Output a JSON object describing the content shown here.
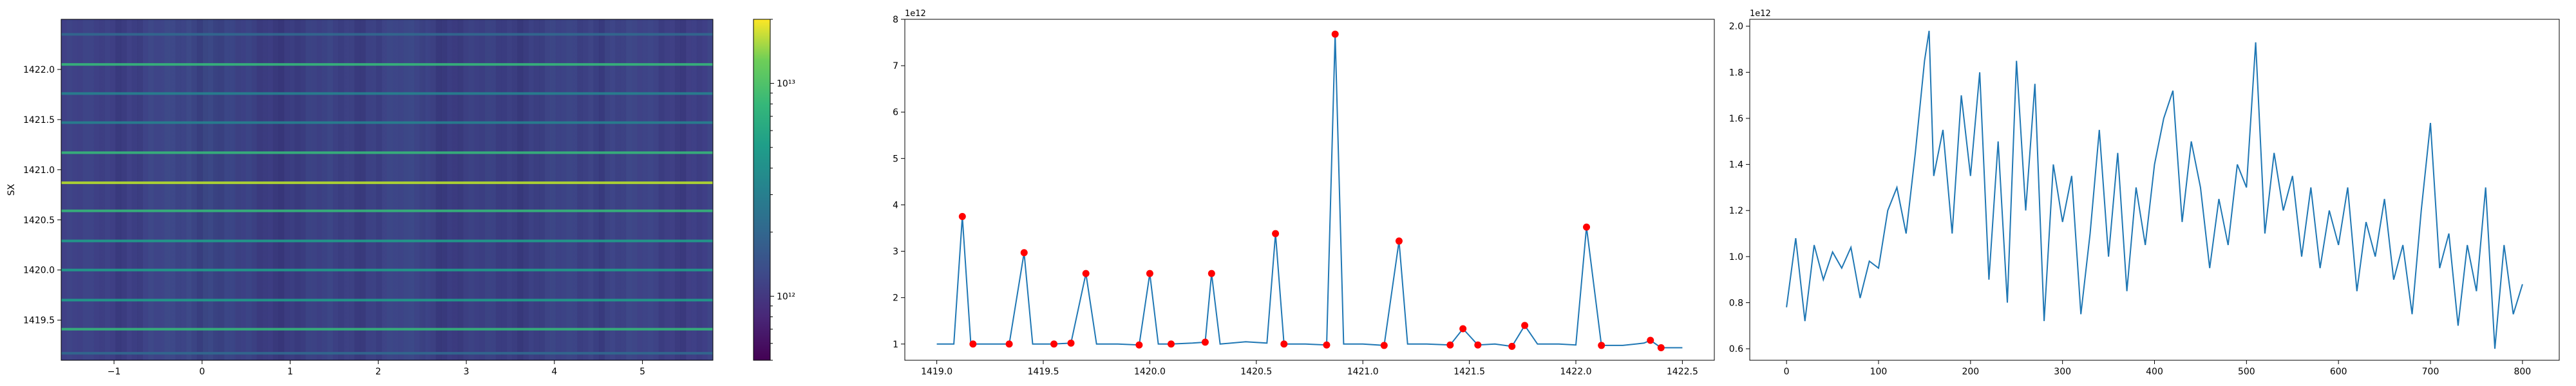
{
  "chart_data": [
    {
      "type": "heatmap",
      "title": "",
      "xlabel": "",
      "ylabel": "SX",
      "xlim": [
        -1.6,
        5.8
      ],
      "ylim": [
        1419.1,
        1422.5
      ],
      "x_ticks": [
        "−1",
        "0",
        "1",
        "2",
        "3",
        "4",
        "5"
      ],
      "x_tick_values": [
        -1,
        0,
        1,
        2,
        3,
        4,
        5
      ],
      "y_ticks": [
        "1419.5",
        "1420.0",
        "1420.5",
        "1421.0",
        "1421.5",
        "1422.0"
      ],
      "y_tick_values": [
        1419.5,
        1420.0,
        1420.5,
        1421.0,
        1421.5,
        1422.0
      ],
      "colormap": "viridis",
      "color_scale": "log",
      "colorbar": {
        "tick_values": [
          1000000000000.0,
          10000000000000.0
        ],
        "tick_labels": [
          "10¹²",
          "10¹³"
        ],
        "range": [
          500000000000.0,
          20000000000000.0
        ]
      },
      "rows": [
        {
          "y": 1419.17,
          "value": 1000000000000.0
        },
        {
          "y": 1419.41,
          "value": 3000000000000.0
        },
        {
          "y": 1419.7,
          "value": 2500000000000.0
        },
        {
          "y": 1420.0,
          "value": 2500000000000.0
        },
        {
          "y": 1420.29,
          "value": 2500000000000.0
        },
        {
          "y": 1420.59,
          "value": 3400000000000.0
        },
        {
          "y": 1420.87,
          "value": 7700000000000.0
        },
        {
          "y": 1421.17,
          "value": 3200000000000.0
        },
        {
          "y": 1421.47,
          "value": 1300000000000.0
        },
        {
          "y": 1421.76,
          "value": 1400000000000.0
        },
        {
          "y": 1422.05,
          "value": 3500000000000.0
        },
        {
          "y": 1422.35,
          "value": 1000000000000.0
        }
      ]
    },
    {
      "type": "line",
      "title": "",
      "xlabel": "",
      "ylabel": "",
      "offset_text": "1e12",
      "xlim": [
        1418.85,
        1422.65
      ],
      "ylim": [
        0.65,
        8.0
      ],
      "x_ticks": [
        "1419.0",
        "1419.5",
        "1420.0",
        "1420.5",
        "1421.0",
        "1421.5",
        "1422.0",
        "1422.5"
      ],
      "x_tick_values": [
        1419.0,
        1419.5,
        1420.0,
        1420.5,
        1421.0,
        1421.5,
        1422.0,
        1422.5
      ],
      "y_ticks": [
        "1",
        "2",
        "3",
        "4",
        "5",
        "6",
        "7",
        "8"
      ],
      "y_tick_values": [
        1,
        2,
        3,
        4,
        5,
        6,
        7,
        8
      ],
      "line_color": "#1f77b4",
      "marker_color": "#ff0000",
      "x": [
        1419.0,
        1419.08,
        1419.12,
        1419.16,
        1419.22,
        1419.34,
        1419.41,
        1419.45,
        1419.55,
        1419.63,
        1419.7,
        1419.75,
        1419.85,
        1419.95,
        1420.0,
        1420.04,
        1420.1,
        1420.2,
        1420.26,
        1420.29,
        1420.33,
        1420.45,
        1420.55,
        1420.59,
        1420.63,
        1420.73,
        1420.83,
        1420.87,
        1420.91,
        1421.0,
        1421.1,
        1421.17,
        1421.21,
        1421.3,
        1421.41,
        1421.47,
        1421.54,
        1421.62,
        1421.7,
        1421.76,
        1421.82,
        1421.92,
        1422.0,
        1422.05,
        1422.12,
        1422.22,
        1422.32,
        1422.35,
        1422.4,
        1422.5
      ],
      "y": [
        1.0,
        1.0,
        3.75,
        1.0,
        1.0,
        1.0,
        2.97,
        1.0,
        1.0,
        1.02,
        2.52,
        1.0,
        1.0,
        0.98,
        2.52,
        1.0,
        1.0,
        1.02,
        1.04,
        2.52,
        1.0,
        1.05,
        1.02,
        3.38,
        1.0,
        1.0,
        0.98,
        7.68,
        1.0,
        1.0,
        0.97,
        3.22,
        1.0,
        1.0,
        0.98,
        1.33,
        0.98,
        1.0,
        0.95,
        1.4,
        1.0,
        1.0,
        0.98,
        3.52,
        0.97,
        0.97,
        1.02,
        1.08,
        0.92,
        0.92
      ],
      "peaks_x": [
        1419.12,
        1419.17,
        1419.34,
        1419.41,
        1419.55,
        1419.63,
        1419.7,
        1419.95,
        1420.0,
        1420.1,
        1420.26,
        1420.29,
        1420.59,
        1420.63,
        1420.83,
        1420.87,
        1421.1,
        1421.17,
        1421.41,
        1421.47,
        1421.54,
        1421.7,
        1421.76,
        1422.05,
        1422.12,
        1422.35,
        1422.4
      ],
      "peaks_y": [
        3.75,
        1.0,
        1.0,
        2.97,
        1.0,
        1.02,
        2.52,
        0.98,
        2.52,
        1.0,
        1.04,
        2.52,
        3.38,
        1.0,
        0.98,
        7.68,
        0.97,
        3.22,
        0.98,
        1.33,
        0.98,
        0.95,
        1.4,
        3.52,
        0.97,
        1.08,
        0.92
      ]
    },
    {
      "type": "line",
      "title": "",
      "xlabel": "",
      "ylabel": "",
      "offset_text": "1e12",
      "xlim": [
        -40,
        840
      ],
      "ylim": [
        0.55,
        2.03
      ],
      "x_ticks": [
        "0",
        "100",
        "200",
        "300",
        "400",
        "500",
        "600",
        "700",
        "800"
      ],
      "x_tick_values": [
        0,
        100,
        200,
        300,
        400,
        500,
        600,
        700,
        800
      ],
      "y_ticks": [
        "0.6",
        "0.8",
        "1.0",
        "1.2",
        "1.4",
        "1.6",
        "1.8",
        "2.0"
      ],
      "y_tick_values": [
        0.6,
        0.8,
        1.0,
        1.2,
        1.4,
        1.6,
        1.8,
        2.0
      ],
      "line_color": "#1f77b4",
      "x": [
        0,
        10,
        20,
        30,
        40,
        50,
        60,
        70,
        80,
        90,
        100,
        110,
        120,
        130,
        140,
        150,
        155,
        160,
        170,
        180,
        190,
        200,
        210,
        220,
        230,
        240,
        250,
        260,
        270,
        280,
        290,
        300,
        310,
        320,
        330,
        340,
        350,
        360,
        370,
        380,
        390,
        400,
        410,
        420,
        430,
        440,
        450,
        460,
        470,
        480,
        490,
        500,
        510,
        520,
        530,
        540,
        550,
        560,
        570,
        580,
        590,
        600,
        610,
        620,
        630,
        640,
        650,
        660,
        670,
        680,
        690,
        700,
        710,
        720,
        730,
        740,
        750,
        760,
        770,
        780,
        790,
        800
      ],
      "y": [
        0.78,
        1.08,
        0.72,
        1.05,
        0.9,
        1.02,
        0.95,
        1.04,
        0.82,
        0.98,
        0.95,
        1.2,
        1.3,
        1.1,
        1.45,
        1.85,
        1.98,
        1.35,
        1.55,
        1.1,
        1.7,
        1.35,
        1.8,
        0.9,
        1.5,
        0.8,
        1.85,
        1.2,
        1.75,
        0.72,
        1.4,
        1.15,
        1.35,
        0.75,
        1.1,
        1.55,
        1.0,
        1.45,
        0.85,
        1.3,
        1.05,
        1.4,
        1.6,
        1.72,
        1.15,
        1.5,
        1.3,
        0.95,
        1.25,
        1.05,
        1.4,
        1.3,
        1.93,
        1.1,
        1.45,
        1.2,
        1.35,
        1.0,
        1.3,
        0.95,
        1.2,
        1.05,
        1.3,
        0.85,
        1.15,
        1.0,
        1.25,
        0.9,
        1.05,
        0.75,
        1.2,
        1.58,
        0.95,
        1.1,
        0.7,
        1.05,
        0.85,
        1.3,
        0.6,
        1.05,
        0.75,
        0.88
      ]
    }
  ]
}
